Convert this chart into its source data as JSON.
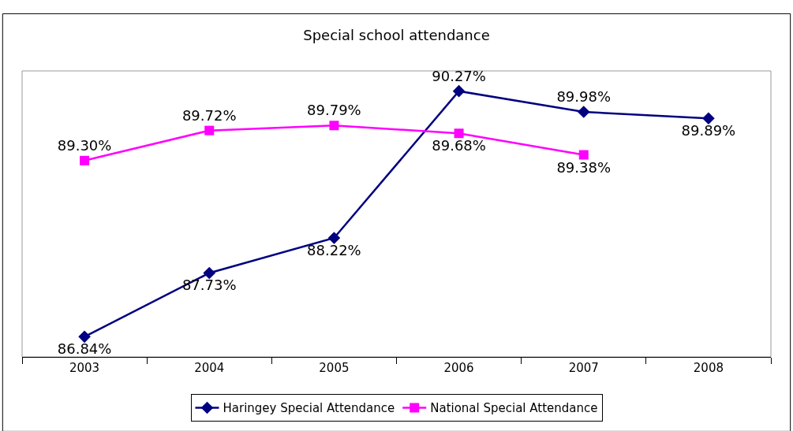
{
  "chart_data": {
    "type": "line",
    "title": "Special school attendance",
    "categories": [
      "2003",
      "2004",
      "2005",
      "2006",
      "2007",
      "2008"
    ],
    "series": [
      {
        "name": "Haringey Special Attendance",
        "color": "#000080",
        "marker": "diamond",
        "values": [
          86.84,
          87.73,
          88.22,
          90.27,
          89.98,
          89.89
        ],
        "value_labels": [
          "86.84%",
          "87.73%",
          "88.22%",
          "90.27%",
          "89.98%",
          "89.89%"
        ]
      },
      {
        "name": "National Special Attendance",
        "color": "#ff00ff",
        "marker": "square",
        "values": [
          89.3,
          89.72,
          89.79,
          89.68,
          89.38,
          null
        ],
        "value_labels": [
          "89.30%",
          "89.72%",
          "89.79%",
          "89.68%",
          "89.38%",
          null
        ]
      }
    ],
    "legend": "bottom",
    "grid": false,
    "line_style": "solid"
  }
}
